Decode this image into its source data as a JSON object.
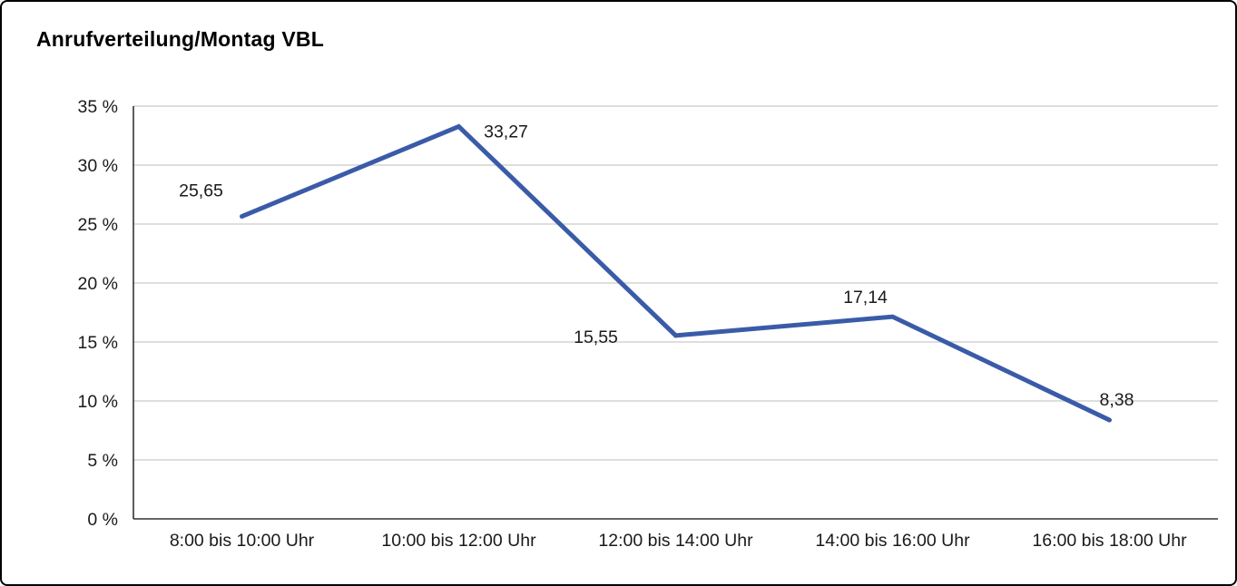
{
  "frame": {
    "border_color": "#000000",
    "background_color": "#ffffff"
  },
  "chart_data": {
    "type": "line",
    "title": "Anrufverteilung/Montag VBL",
    "categories": [
      "8:00 bis 10:00 Uhr",
      "10:00 bis 12:00 Uhr",
      "12:00 bis 14:00 Uhr",
      "14:00 bis 16:00 Uhr",
      "16:00 bis 18:00 Uhr"
    ],
    "values": [
      25.65,
      33.27,
      15.55,
      17.14,
      8.38
    ],
    "point_labels": [
      "25,65",
      "33,27",
      "15,55",
      "17,14",
      "8,38"
    ],
    "xlabel": "",
    "ylabel": "",
    "ylim": [
      0,
      35
    ],
    "ytick_step": 5,
    "ytick_labels": [
      "0 %",
      "5 %",
      "10 %",
      "15 %",
      "20 %",
      "25 %",
      "30 %",
      "35 %"
    ],
    "grid": "horizontal",
    "legend": "none",
    "line_color": "#3a5ba8",
    "line_width": 5,
    "gridline_color": "#c9c9c9",
    "axis_color": "#333333",
    "text_color": "#1a1a1a"
  }
}
